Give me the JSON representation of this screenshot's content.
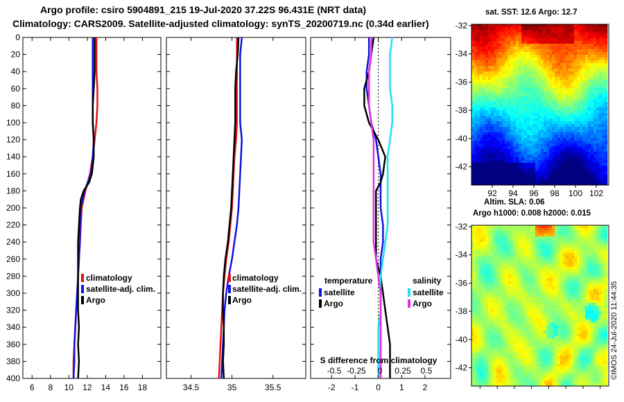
{
  "title_line1": "Argo profile: csiro 5904891_215 19-Jul-2020 37.22S 96.431E (NRT data)",
  "title_line2": "Climatology: CARS2009. Satellite-adjusted climatology: synTS_20200719.nc (0.34d earlier)",
  "map1_title": "sat. SST: 12.6 Argo: 12.7",
  "map2_title1": "Altim. SLA: 0.06",
  "map2_title2": "Argo h1000: 0.008 h2000: 0.015",
  "credit": "©IMOS 24-Jul-2020 11:44:35",
  "colors": {
    "climatology": "#e41010",
    "satellite": "#1010e0",
    "argo": "#000000",
    "sal_sat": "#20e0f0",
    "sal_argo": "#e030e0",
    "sst_hot": "#a01000",
    "sla_base": "#50d050"
  },
  "chart_data": [
    {
      "type": "line",
      "name": "temperature-profile",
      "xlabel": "",
      "ylabel": "pressure",
      "xlim": [
        5,
        20
      ],
      "ylim": [
        400,
        0
      ],
      "xticks": [
        "6",
        "8",
        "10",
        "12",
        "14",
        "16",
        "18"
      ],
      "yticks": [
        "0",
        "20",
        "40",
        "60",
        "80",
        "100",
        "120",
        "140",
        "160",
        "180",
        "200",
        "220",
        "240",
        "260",
        "280",
        "300",
        "320",
        "340",
        "360",
        "380",
        "400"
      ],
      "legend": [
        "climatology",
        "satellite-adj. clim.",
        "Argo"
      ],
      "series": [
        {
          "name": "climatology",
          "y": [
            0,
            20,
            40,
            60,
            80,
            100,
            120,
            140,
            160,
            180,
            200,
            220,
            240,
            260,
            280,
            300,
            320,
            340,
            360,
            380,
            400
          ],
          "x": [
            13.0,
            13.0,
            13.0,
            13.1,
            13.1,
            13.0,
            12.8,
            12.6,
            12.3,
            11.8,
            11.4,
            11.3,
            11.2,
            11.1,
            11.0,
            10.9,
            10.8,
            10.7,
            10.6,
            10.5,
            10.5
          ]
        },
        {
          "name": "satellite-adj. clim.",
          "y": [
            0,
            20,
            40,
            60,
            80,
            100,
            120,
            140,
            160,
            180,
            200,
            220,
            240,
            260,
            280,
            300,
            320,
            340,
            360,
            380,
            400
          ],
          "x": [
            12.6,
            12.6,
            12.6,
            12.6,
            12.6,
            12.6,
            12.7,
            12.6,
            12.4,
            11.7,
            11.3,
            11.2,
            11.2,
            11.1,
            11.0,
            10.9,
            10.8,
            10.7,
            10.6,
            10.6,
            10.5
          ]
        },
        {
          "name": "Argo",
          "y": [
            0,
            20,
            40,
            60,
            80,
            100,
            120,
            140,
            160,
            170,
            180,
            190,
            200,
            220,
            240,
            260,
            280,
            300,
            320,
            340,
            360,
            380,
            400
          ],
          "x": [
            12.8,
            12.8,
            12.8,
            12.7,
            12.6,
            12.6,
            12.7,
            12.7,
            12.5,
            12.2,
            11.6,
            11.3,
            11.2,
            11.1,
            11.0,
            11.0,
            11.0,
            11.0,
            11.0,
            11.1,
            11.0,
            11.1,
            11.0
          ]
        }
      ]
    },
    {
      "type": "line",
      "name": "salinity-profile",
      "xlabel": "",
      "ylabel": "pressure",
      "xlim": [
        34.2,
        35.9
      ],
      "ylim": [
        400,
        0
      ],
      "xticks": [
        "34.5",
        "35",
        "35.5"
      ],
      "legend": [
        "climatology",
        "satellite-adj. clim.",
        "Argo"
      ],
      "series": [
        {
          "name": "climatology",
          "y": [
            0,
            20,
            40,
            60,
            80,
            100,
            120,
            140,
            160,
            180,
            200,
            220,
            240,
            260,
            280,
            300,
            320,
            340,
            360,
            380,
            400
          ],
          "x": [
            35.06,
            35.06,
            35.06,
            35.06,
            35.06,
            35.06,
            35.05,
            35.03,
            35.02,
            35.01,
            35.0,
            34.98,
            34.96,
            34.93,
            34.91,
            34.89,
            34.88,
            34.87,
            34.86,
            34.85,
            34.84
          ]
        },
        {
          "name": "satellite-adj. clim.",
          "y": [
            0,
            20,
            40,
            60,
            80,
            100,
            120,
            140,
            160,
            180,
            200,
            220,
            240,
            260,
            280,
            300,
            320,
            340,
            360,
            380,
            400
          ],
          "x": [
            35.12,
            35.1,
            35.1,
            35.1,
            35.1,
            35.1,
            35.12,
            35.11,
            35.1,
            35.09,
            35.08,
            35.06,
            35.03,
            35.0,
            34.96,
            34.93,
            34.91,
            34.9,
            34.89,
            34.88,
            34.87
          ]
        },
        {
          "name": "Argo",
          "y": [
            0,
            20,
            40,
            60,
            80,
            100,
            120,
            140,
            160,
            180,
            200,
            220,
            240,
            260,
            280,
            300,
            320,
            340,
            360,
            380,
            400
          ],
          "x": [
            35.08,
            35.07,
            35.05,
            35.04,
            35.04,
            35.04,
            35.03,
            35.02,
            35.01,
            35.0,
            34.99,
            34.97,
            34.95,
            34.92,
            34.9,
            34.89,
            34.89,
            34.9,
            34.9,
            34.89,
            34.9
          ]
        }
      ]
    },
    {
      "type": "line",
      "name": "difference-from-climatology",
      "xlabel": "S difference from climatology",
      "ylabel": "pressure",
      "xlim": [
        -2.9,
        3.1
      ],
      "ylim": [
        400,
        0
      ],
      "xticks": [
        "-2",
        "-1",
        "0",
        "1",
        "2"
      ],
      "sticks": [
        "-0.5",
        "-0.25",
        "0",
        "0.25",
        "0.5"
      ],
      "legend_temperature": {
        "header": "temperature",
        "satellite": "satellite",
        "argo": "Argo"
      },
      "legend_salinity": {
        "header": "salinity",
        "satellite": "satellite",
        "argo": "Argo"
      },
      "series": [
        {
          "name": "T satellite",
          "y": [
            0,
            20,
            40,
            60,
            80,
            100,
            120,
            140,
            160,
            180,
            200,
            220,
            240,
            260,
            280,
            300,
            320,
            340,
            360,
            380,
            400
          ],
          "x": [
            -0.4,
            -0.4,
            -0.5,
            -0.5,
            -0.4,
            -0.3,
            -0.1,
            0,
            0.1,
            0.1,
            0.1,
            0.2,
            0.2,
            0.1,
            0.1,
            0.1,
            0.1,
            0.1,
            0.1,
            0.1,
            0.1
          ]
        },
        {
          "name": "T Argo",
          "y": [
            0,
            20,
            40,
            60,
            80,
            100,
            120,
            140,
            160,
            170,
            180,
            200,
            220,
            240,
            260,
            280,
            300,
            320,
            340,
            360,
            380,
            400
          ],
          "x": [
            -0.2,
            -0.3,
            -0.4,
            -0.6,
            -0.6,
            -0.4,
            0.0,
            0.3,
            0.2,
            0.1,
            -0.1,
            -0.1,
            -0.1,
            -0.1,
            -0.1,
            0.1,
            0.2,
            0.3,
            0.4,
            0.5,
            0.5,
            0.5
          ]
        },
        {
          "name": "S satellite",
          "y": [
            0,
            20,
            40,
            60,
            80,
            100,
            120,
            140,
            160,
            180,
            200,
            220,
            240,
            260,
            280,
            300,
            320,
            340,
            360,
            380,
            400
          ],
          "x": [
            0.6,
            0.5,
            0.5,
            0.5,
            0.6,
            0.6,
            0.5,
            0.4,
            0.4,
            0.4,
            0.4,
            0.4,
            0.3,
            0.2,
            0.1,
            0.1,
            0.1,
            0.0,
            0.0,
            0.0,
            0.0
          ]
        },
        {
          "name": "S Argo",
          "y": [
            0,
            20,
            40,
            60,
            80,
            100,
            120,
            140,
            160,
            180,
            200,
            220,
            240,
            260,
            280,
            300,
            320,
            340,
            360,
            380,
            400
          ],
          "x": [
            -0.3,
            -0.3,
            -0.4,
            -0.4,
            -0.4,
            -0.3,
            -0.2,
            -0.2,
            -0.2,
            -0.2,
            -0.2,
            -0.2,
            -0.2,
            -0.1,
            0.0,
            0.1,
            0.1,
            0.1,
            0.1,
            0.1,
            0.1
          ]
        }
      ]
    },
    {
      "type": "heatmap",
      "name": "sst-map",
      "title": "sat. SST: 12.6 Argo: 12.7",
      "xticks": [
        "92",
        "94",
        "96",
        "98",
        "100",
        "102"
      ],
      "yticks": [
        "-32",
        "-34",
        "-36",
        "-38",
        "-40",
        "-42"
      ],
      "xlim": [
        90,
        103.2
      ],
      "ylim": [
        -43.3,
        -31.9
      ]
    },
    {
      "type": "heatmap",
      "name": "sla-map",
      "title": "Argo h1000: 0.008 h2000: 0.015",
      "yticks": [
        "-32",
        "-34",
        "-36",
        "-38",
        "-40",
        "-42"
      ],
      "ylim": [
        -43.3,
        -31.9
      ]
    }
  ]
}
